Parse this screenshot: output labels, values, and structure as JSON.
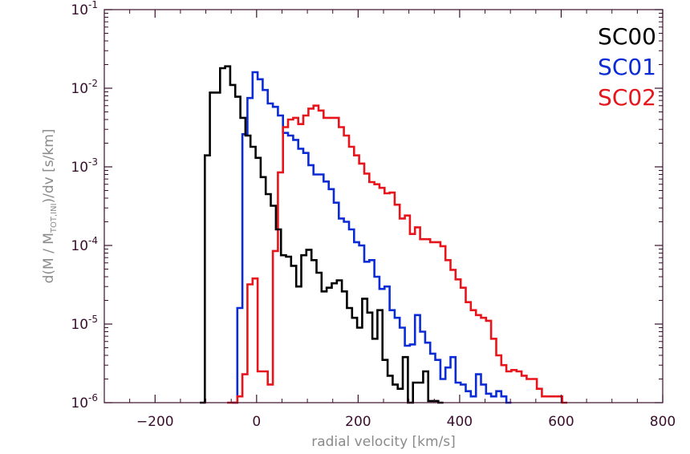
{
  "chart_data": {
    "type": "line",
    "step": true,
    "xlabel": "radial velocity [km/s]",
    "ylabel_parts": [
      "d(M / M",
      "TOT,INI",
      ")/dv [s/km]"
    ],
    "xlim": [
      -300,
      800
    ],
    "ylim": [
      1e-06,
      0.1
    ],
    "yscale": "log",
    "grid": false,
    "legend_position": "top-right",
    "x_ticks": [
      -200,
      0,
      200,
      400,
      600,
      800
    ],
    "x_tick_labels": [
      "−200",
      "0",
      "200",
      "400",
      "600",
      "800"
    ],
    "y_ticks": [
      1e-06,
      1e-05,
      0.0001,
      0.001,
      0.01,
      0.1
    ],
    "y_tick_labels": [
      {
        "base": "10",
        "exp": "-6"
      },
      {
        "base": "10",
        "exp": "-5"
      },
      {
        "base": "10",
        "exp": "-4"
      },
      {
        "base": "10",
        "exp": "-3"
      },
      {
        "base": "10",
        "exp": "-2"
      },
      {
        "base": "10",
        "exp": "-1"
      }
    ],
    "series": [
      {
        "name": "SC00",
        "color": "#000000",
        "x": [
          -107,
          -97,
          -87,
          -77,
          -67,
          -57,
          -47,
          -37,
          -27,
          -17,
          -7,
          3,
          13,
          23,
          33,
          43,
          53,
          63,
          73,
          83,
          93,
          103,
          113,
          123,
          133,
          143,
          153,
          163,
          173,
          183,
          193,
          203,
          213,
          223,
          233,
          243,
          253,
          263,
          273,
          283,
          293,
          303,
          313,
          323,
          333,
          343,
          353,
          363
        ],
        "y": [
          1e-06,
          0.0014,
          0.0088,
          0.0088,
          0.018,
          0.019,
          0.011,
          0.0078,
          0.0042,
          0.0025,
          0.0018,
          0.0013,
          0.00074,
          0.00045,
          0.00032,
          0.00016,
          7.5e-05,
          7.2e-05,
          5.5e-05,
          3e-05,
          7.5e-05,
          8.8e-05,
          6.5e-05,
          4.5e-05,
          2.6e-05,
          2.9e-05,
          3.3e-05,
          3.6e-05,
          2.6e-05,
          1.6e-05,
          1.2e-05,
          9e-06,
          2.1e-05,
          1.4e-05,
          6.5e-06,
          1.5e-05,
          3.5e-06,
          2.2e-06,
          1.7e-06,
          1.5e-06,
          3.8e-06,
          1e-06,
          1.8e-06,
          1.8e-06,
          2.5e-06,
          1.05e-06,
          1.05e-06,
          1e-06
        ]
      },
      {
        "name": "SC01",
        "color": "#0b2bd6",
        "x": [
          -43,
          -33,
          -23,
          -13,
          -3,
          7,
          17,
          27,
          37,
          47,
          57,
          67,
          77,
          87,
          97,
          107,
          117,
          127,
          137,
          147,
          157,
          167,
          177,
          187,
          197,
          207,
          217,
          227,
          237,
          247,
          257,
          267,
          277,
          287,
          297,
          307,
          317,
          327,
          337,
          347,
          357,
          367,
          377,
          387,
          397,
          407,
          417,
          427,
          437,
          447,
          457,
          467,
          477,
          487,
          497
        ],
        "y": [
          1e-06,
          1.6e-05,
          0.0026,
          0.0075,
          0.016,
          0.013,
          0.0095,
          0.0064,
          0.0058,
          0.0045,
          0.0027,
          0.0025,
          0.0022,
          0.0017,
          0.0015,
          0.00105,
          0.0008,
          0.0008,
          0.00065,
          0.00052,
          0.00035,
          0.00022,
          0.0002,
          0.00016,
          0.00011,
          0.0001,
          6.2e-05,
          6.5e-05,
          4e-05,
          2.8e-05,
          3e-05,
          1.5e-05,
          1.2e-05,
          9e-06,
          5.3e-06,
          5.5e-06,
          1.3e-05,
          8e-06,
          5.8e-06,
          4.2e-06,
          3.5e-06,
          2e-06,
          2.8e-06,
          3.8e-06,
          1.8e-06,
          1.7e-06,
          1.4e-06,
          1.2e-06,
          2.3e-06,
          1.7e-06,
          1.3e-06,
          1.2e-06,
          1.4e-06,
          1.2e-06,
          1e-06
        ]
      },
      {
        "name": "SC02",
        "color": "#e8141b",
        "x": [
          -53,
          -43,
          -33,
          -23,
          -13,
          -3,
          7,
          17,
          27,
          37,
          47,
          57,
          67,
          77,
          87,
          97,
          107,
          117,
          127,
          137,
          147,
          157,
          167,
          177,
          187,
          197,
          207,
          217,
          227,
          237,
          247,
          257,
          267,
          277,
          287,
          297,
          307,
          317,
          327,
          337,
          347,
          357,
          367,
          377,
          387,
          397,
          407,
          417,
          427,
          437,
          447,
          457,
          467,
          477,
          487,
          497,
          507,
          517,
          527,
          537,
          547,
          557,
          567,
          577,
          587,
          597,
          607
        ],
        "y": [
          1e-06,
          1e-06,
          1.2e-06,
          2.3e-06,
          3.2e-05,
          3.8e-05,
          2.5e-06,
          2.5e-06,
          1.7e-06,
          8.5e-05,
          0.00085,
          0.0032,
          0.004,
          0.0042,
          0.0035,
          0.0045,
          0.0055,
          0.006,
          0.0052,
          0.0042,
          0.0042,
          0.0042,
          0.0032,
          0.0025,
          0.0018,
          0.0014,
          0.0011,
          0.00082,
          0.00064,
          0.0006,
          0.00054,
          0.00046,
          0.00047,
          0.00033,
          0.00022,
          0.00024,
          0.00014,
          0.00017,
          0.00012,
          0.00012,
          0.00011,
          0.00011,
          9.8e-05,
          6.5e-05,
          4.9e-05,
          3.7e-05,
          2.9e-05,
          1.9e-05,
          1.5e-05,
          1.3e-05,
          1.2e-05,
          1.1e-05,
          6.5e-06,
          4e-06,
          3e-06,
          2.5e-06,
          2.6e-06,
          2.5e-06,
          2.2e-06,
          2e-06,
          2e-06,
          1.5e-06,
          1.2e-06,
          1.2e-06,
          1.2e-06,
          1.2e-06,
          1e-06
        ]
      }
    ]
  }
}
